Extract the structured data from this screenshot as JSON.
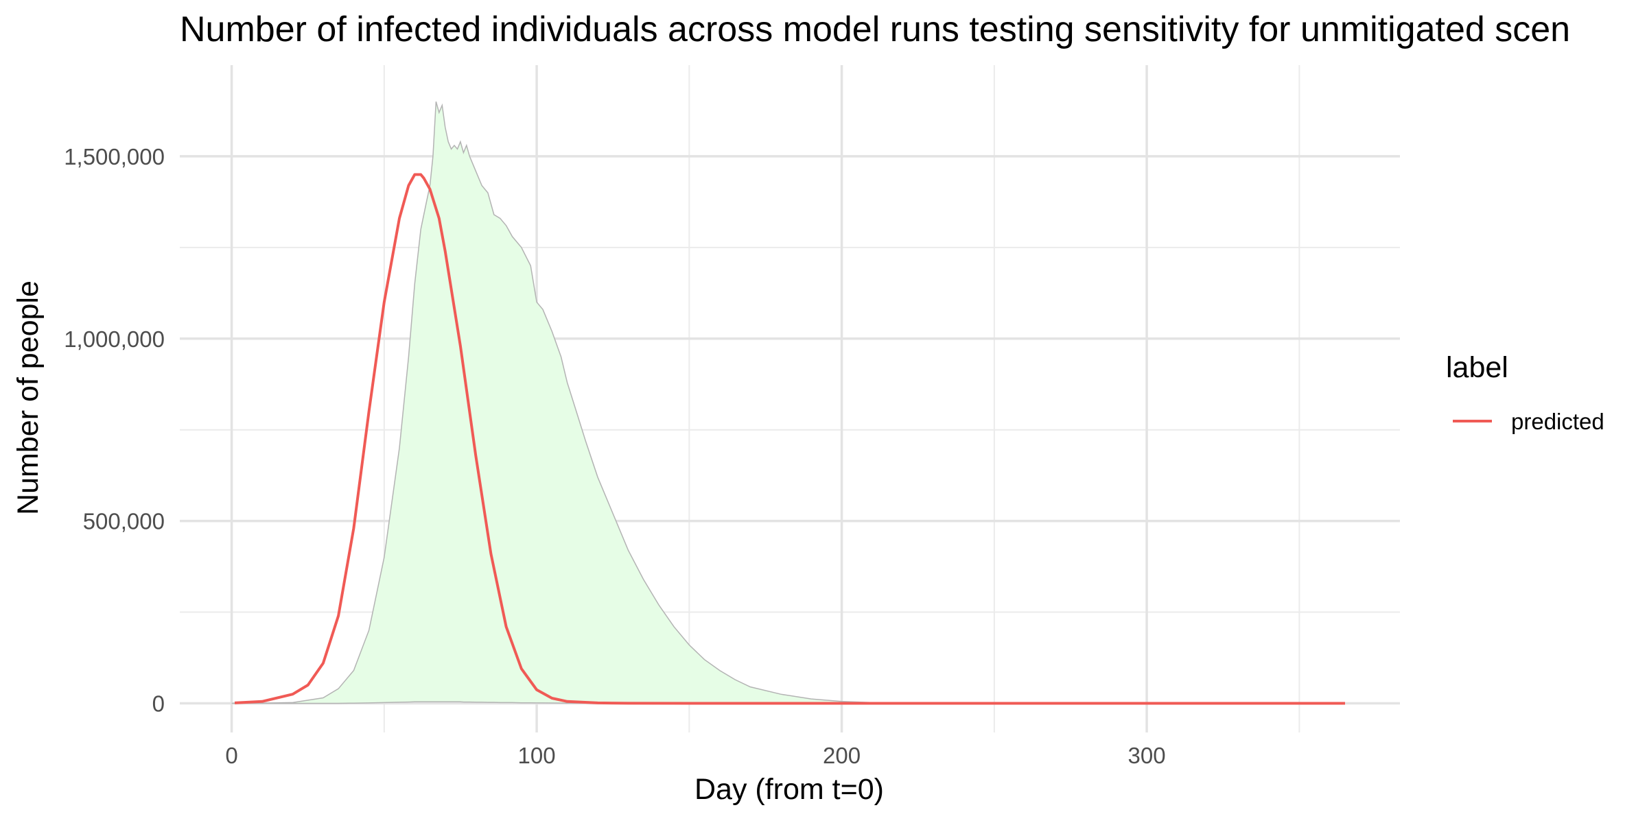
{
  "chart_data": {
    "type": "area",
    "title": "Number of infected individuals across model runs testing sensitivity for unmitigated scen",
    "xlabel": "Day (from t=0)",
    "ylabel": "Number of people",
    "xlim": [
      -17,
      383
    ],
    "ylim": [
      -80000,
      1750000
    ],
    "x_ticks": [
      0,
      100,
      200,
      300
    ],
    "x_tick_labels": [
      "0",
      "100",
      "200",
      "300"
    ],
    "y_ticks": [
      0,
      500000,
      1000000,
      1500000
    ],
    "y_tick_labels": [
      "0",
      "500,000",
      "1,000,000",
      "1,500,000"
    ],
    "grid": true,
    "legend": {
      "title": "label",
      "position": "right",
      "entries": [
        "predicted"
      ]
    },
    "ribbon": {
      "fill": "#e6fde6",
      "stroke": "#b3b3b3",
      "x": [
        0,
        10,
        20,
        30,
        35,
        40,
        45,
        50,
        55,
        58,
        60,
        62,
        64,
        65,
        66,
        67,
        68,
        69,
        70,
        71,
        72,
        73,
        74,
        75,
        76,
        77,
        78,
        80,
        82,
        84,
        86,
        88,
        90,
        92,
        95,
        98,
        100,
        102,
        105,
        108,
        110,
        113,
        116,
        120,
        125,
        130,
        135,
        140,
        145,
        150,
        155,
        160,
        165,
        170,
        180,
        190,
        200,
        210,
        220,
        240,
        260,
        300,
        365
      ],
      "upper": [
        0,
        200,
        2000,
        15000,
        40000,
        90000,
        200000,
        400000,
        700000,
        950000,
        1150000,
        1300000,
        1380000,
        1420000,
        1500000,
        1650000,
        1620000,
        1640000,
        1580000,
        1540000,
        1520000,
        1530000,
        1520000,
        1540000,
        1510000,
        1530000,
        1500000,
        1460000,
        1420000,
        1400000,
        1340000,
        1330000,
        1310000,
        1280000,
        1250000,
        1200000,
        1100000,
        1080000,
        1020000,
        950000,
        880000,
        800000,
        720000,
        620000,
        520000,
        420000,
        340000,
        270000,
        210000,
        160000,
        120000,
        90000,
        65000,
        45000,
        25000,
        12000,
        5000,
        2000,
        800,
        200,
        50,
        0,
        0
      ],
      "lower": [
        0,
        0,
        0,
        0,
        0,
        500,
        1000,
        2000,
        3000,
        3500,
        4000,
        4000,
        4000,
        4000,
        4000,
        4000,
        4000,
        4000,
        4000,
        4000,
        4000,
        4000,
        4000,
        4000,
        3500,
        3500,
        3500,
        3000,
        3000,
        2500,
        2500,
        2000,
        2000,
        2000,
        1500,
        1500,
        1000,
        1000,
        800,
        600,
        500,
        400,
        300,
        200,
        100,
        50,
        0,
        0,
        0,
        0,
        0,
        0,
        0,
        0,
        0,
        0,
        0,
        0,
        0,
        0,
        0,
        0,
        0
      ]
    },
    "series": [
      {
        "name": "predicted",
        "color": "#f05a55",
        "x": [
          1,
          10,
          20,
          25,
          30,
          35,
          40,
          45,
          50,
          55,
          58,
          60,
          62,
          63,
          65,
          68,
          70,
          75,
          80,
          85,
          90,
          95,
          100,
          105,
          110,
          120,
          130,
          150,
          200,
          250,
          300,
          365
        ],
        "values": [
          1000,
          5000,
          25000,
          50000,
          110000,
          240000,
          480000,
          800000,
          1100000,
          1330000,
          1420000,
          1450000,
          1450000,
          1440000,
          1410000,
          1330000,
          1240000,
          980000,
          680000,
          410000,
          210000,
          95000,
          37000,
          14000,
          5000,
          1000,
          200,
          0,
          0,
          0,
          0,
          0
        ]
      }
    ]
  }
}
